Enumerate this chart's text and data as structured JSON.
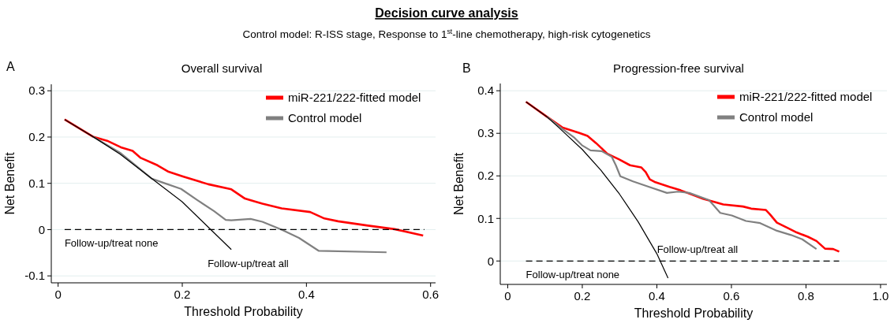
{
  "chart_data": [
    {
      "type": "line",
      "title": "Overall survival",
      "xlabel": "Threshold Probability",
      "ylabel": "Net Benefit",
      "annotations": [
        "A",
        "Decision curve analysis",
        "Control model: R-ISS stage, Response to 1$^{st}$-line chemotherapy, high-risk cytogenetics"
      ],
      "xlim": [
        -0.011,
        0.608
      ],
      "ylim": [
        -0.115,
        0.314
      ],
      "xticks": [
        0,
        0.2,
        0.4,
        0.6
      ],
      "yticks": [
        -0.1,
        0,
        0.1,
        0.2,
        0.3
      ],
      "grid": "y",
      "legend": "top right",
      "marker": "none",
      "series": [
        {
          "name": "miR-221/222-fitted model",
          "color": "#ff0000",
          "x": [
            0.0105,
            0.056,
            0.079,
            0.101,
            0.12,
            0.133,
            0.16,
            0.178,
            0.201,
            0.242,
            0.279,
            0.301,
            0.329,
            0.36,
            0.406,
            0.429,
            0.451,
            0.497,
            0.542,
            0.588
          ],
          "values": [
            0.238,
            0.201,
            0.192,
            0.178,
            0.17,
            0.155,
            0.139,
            0.125,
            0.115,
            0.098,
            0.087,
            0.067,
            0.056,
            0.046,
            0.038,
            0.024,
            0.018,
            0.009,
            0.001,
            -0.013
          ]
        },
        {
          "name": "Control model",
          "color": "#808080",
          "x": [
            0.056,
            0.101,
            0.151,
            0.17,
            0.198,
            0.224,
            0.251,
            0.27,
            0.279,
            0.31,
            0.329,
            0.36,
            0.388,
            0.42,
            0.529
          ],
          "values": [
            0.201,
            0.165,
            0.11,
            0.101,
            0.088,
            0.064,
            0.04,
            0.021,
            0.02,
            0.023,
            0.017,
            0,
            -0.018,
            -0.046,
            -0.049
          ]
        },
        {
          "name": "Follow-up/treat all",
          "color": "#000000",
          "x": [
            0.0105,
            0.056,
            0.1,
            0.151,
            0.2,
            0.246,
            0.279
          ],
          "values": [
            0.238,
            0.201,
            0.163,
            0.11,
            0.06,
            0,
            -0.043
          ]
        },
        {
          "name": "Follow-up/treat none",
          "color": "#000000",
          "line_style": "dashed",
          "x": [
            0.0105,
            0.59
          ],
          "values": [
            0,
            0
          ]
        }
      ]
    },
    {
      "type": "line",
      "title": "Progression-free survival",
      "xlabel": "Threshold Probability",
      "ylabel": "Net Benefit",
      "annotations": [
        "B"
      ],
      "xlim": [
        -0.02,
        1.017
      ],
      "ylim": [
        -0.055,
        0.417
      ],
      "xticks": [
        0,
        0.2,
        0.4,
        0.6,
        0.8,
        {
          "value": 1,
          "label": "1.0"
        }
      ],
      "yticks": [
        0,
        0.1,
        0.2,
        0.3,
        0.4
      ],
      "grid": "y",
      "legend": "top right",
      "marker": "none",
      "series": [
        {
          "name": "miR-221/222-fitted model",
          "color": "#ff0000",
          "x": [
            0.049,
            0.105,
            0.146,
            0.192,
            0.214,
            0.237,
            0.267,
            0.298,
            0.328,
            0.358,
            0.37,
            0.381,
            0.396,
            0.434,
            0.464,
            0.525,
            0.578,
            0.631,
            0.653,
            0.692,
            0.703,
            0.722,
            0.752,
            0.775,
            0.805,
            0.828,
            0.851,
            0.873,
            0.889
          ],
          "values": [
            0.374,
            0.339,
            0.314,
            0.301,
            0.294,
            0.277,
            0.252,
            0.239,
            0.225,
            0.22,
            0.209,
            0.192,
            0.185,
            0.174,
            0.166,
            0.146,
            0.133,
            0.128,
            0.123,
            0.12,
            0.11,
            0.09,
            0.077,
            0.067,
            0.057,
            0.047,
            0.029,
            0.028,
            0.022
          ]
        },
        {
          "name": "Control model",
          "color": "#808080",
          "x": [
            0.105,
            0.146,
            0.177,
            0.199,
            0.222,
            0.252,
            0.279,
            0.29,
            0.302,
            0.336,
            0.373,
            0.427,
            0.457,
            0.487,
            0.54,
            0.57,
            0.601,
            0.639,
            0.677,
            0.722,
            0.76,
            0.79,
            0.828
          ],
          "values": [
            0.339,
            0.311,
            0.291,
            0.272,
            0.26,
            0.258,
            0.245,
            0.225,
            0.199,
            0.187,
            0.176,
            0.16,
            0.163,
            0.16,
            0.143,
            0.113,
            0.107,
            0.094,
            0.089,
            0.071,
            0.061,
            0.051,
            0.028
          ]
        },
        {
          "name": "Follow-up/treat all",
          "color": "#000000",
          "x": [
            0.049,
            0.105,
            0.15,
            0.2,
            0.25,
            0.3,
            0.35,
            0.4,
            0.43
          ],
          "values": [
            0.374,
            0.339,
            0.303,
            0.262,
            0.213,
            0.157,
            0.092,
            0.017,
            -0.04
          ]
        },
        {
          "name": "Follow-up/treat none",
          "color": "#000000",
          "line_style": "dashed",
          "x": [
            0.049,
            0.889
          ],
          "values": [
            0,
            0
          ]
        }
      ]
    }
  ]
}
